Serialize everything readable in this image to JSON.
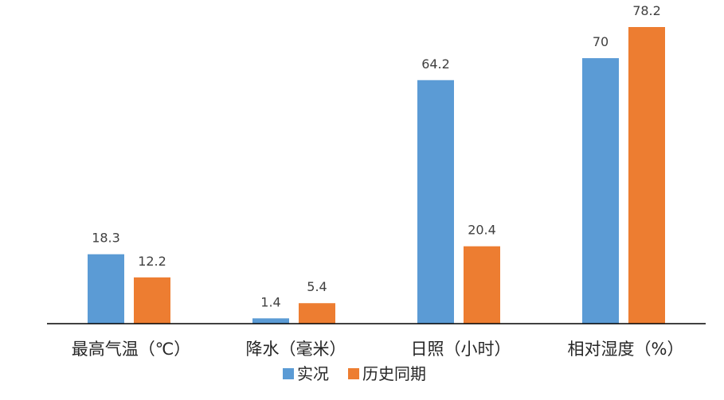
{
  "chart_data": {
    "type": "bar",
    "title": "",
    "xlabel": "",
    "ylabel": "",
    "categories": [
      "最高气温（℃）",
      "降水（毫米）",
      "日照（小时）",
      "相对湿度（%）"
    ],
    "series": [
      {
        "name": "实况",
        "values": [
          18.3,
          1.4,
          64.2,
          70
        ],
        "color": "#5b9bd5"
      },
      {
        "name": "历史同期",
        "values": [
          12.2,
          5.4,
          20.4,
          78.2
        ],
        "color": "#ed7d31"
      }
    ],
    "value_labels": [
      [
        "18.3",
        "1.4",
        "64.2",
        "70"
      ],
      [
        "12.2",
        "5.4",
        "20.4",
        "78.2"
      ]
    ],
    "ylim": [
      0,
      78.2
    ],
    "y_axis_shown": false,
    "grid": false,
    "legend_position": "bottom",
    "colors": {
      "axis_line": "#000000",
      "label_text": "#404040",
      "category_text": "#262626"
    }
  }
}
